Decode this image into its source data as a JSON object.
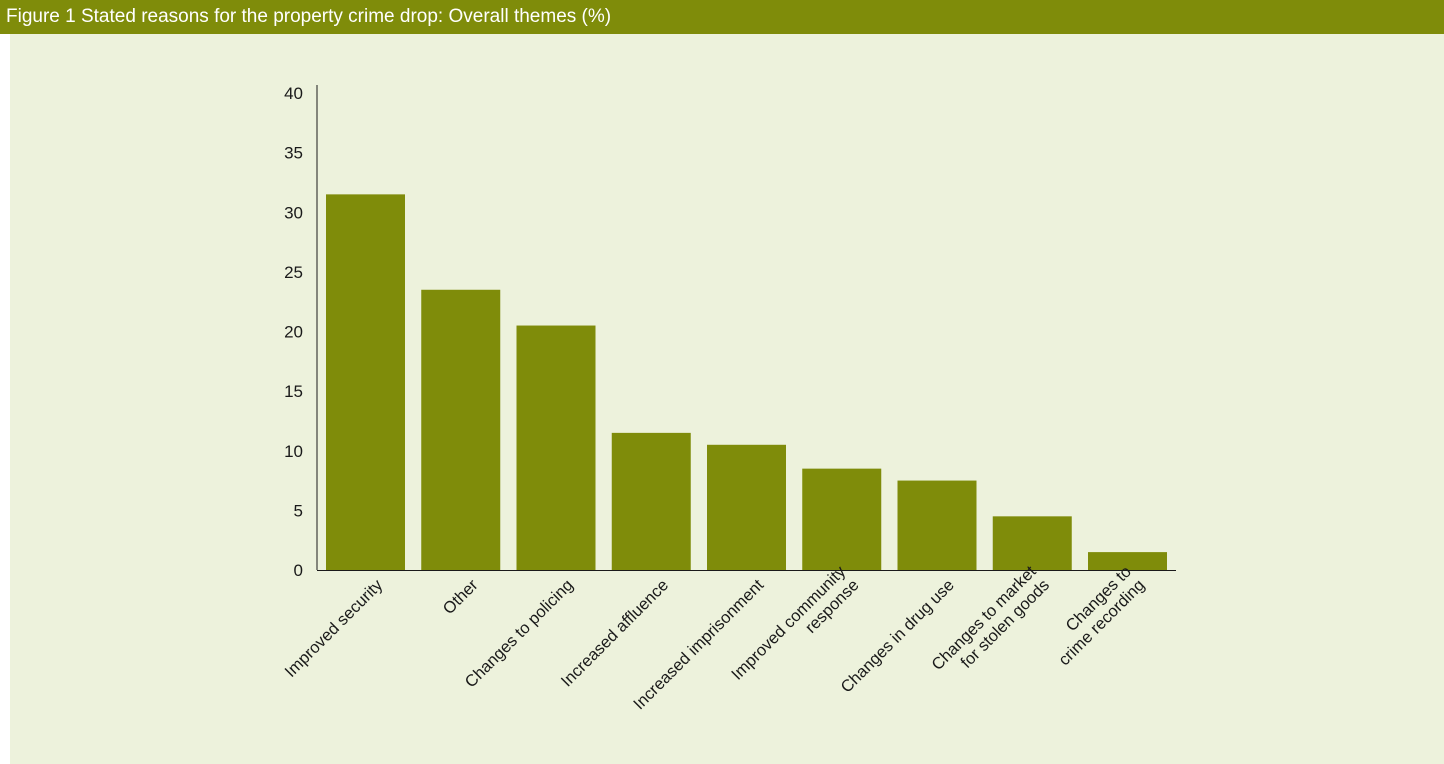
{
  "title": "Figure 1 Stated reasons for the property crime drop: Overall themes (%)",
  "colors": {
    "title_bar": "#7f8c0a",
    "plot_background": "#edf2dc",
    "bar": "#7f8c0a",
    "axis": "#1a1a1a"
  },
  "chart_data": {
    "type": "bar",
    "title": "Figure 1 Stated reasons for the property crime drop: Overall themes (%)",
    "xlabel": "",
    "ylabel": "",
    "ylim": [
      0,
      40
    ],
    "yticks": [
      0,
      5,
      10,
      15,
      20,
      25,
      30,
      35,
      40
    ],
    "grid": false,
    "legend": "none",
    "categories": [
      "Improved security",
      "Other",
      "Changes to policing",
      "Increased affluence",
      "Increased imprisonment",
      "Improved community response",
      "Changes in drug use",
      "Changes to market for stolen goods",
      "Changes to crime recording"
    ],
    "category_lines": [
      [
        "Improved security"
      ],
      [
        "Other"
      ],
      [
        "Changes to policing"
      ],
      [
        "Increased affluence"
      ],
      [
        "Increased imprisonment"
      ],
      [
        "Improved community",
        "response"
      ],
      [
        "Changes in drug use"
      ],
      [
        "Changes to market",
        "for stolen goods"
      ],
      [
        "Changes to",
        "crime recording"
      ]
    ],
    "values": [
      31.5,
      23.5,
      20.5,
      11.5,
      10.5,
      8.5,
      7.5,
      4.5,
      1.5
    ]
  }
}
